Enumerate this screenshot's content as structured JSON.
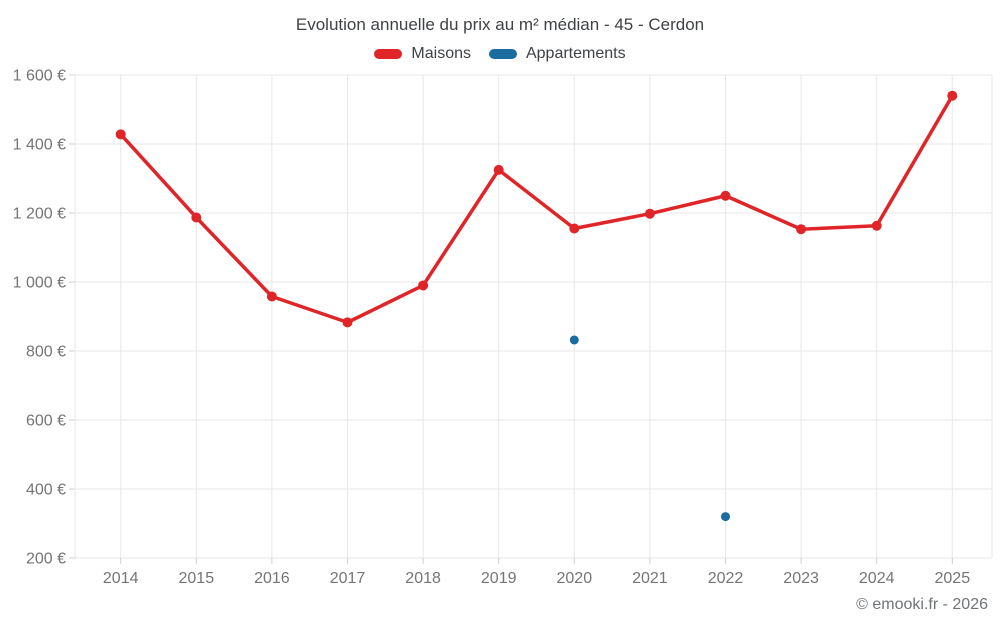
{
  "chart_data": {
    "type": "line",
    "title": "Evolution annuelle du prix au m² médian - 45 - Cerdon",
    "categories": [
      "2014",
      "2015",
      "2016",
      "2017",
      "2018",
      "2019",
      "2020",
      "2021",
      "2022",
      "2023",
      "2024",
      "2025"
    ],
    "series": [
      {
        "name": "Maisons",
        "color": "#e02529",
        "values": [
          1428,
          1187,
          958,
          883,
          990,
          1325,
          1155,
          1198,
          1250,
          1153,
          1163,
          1540
        ]
      },
      {
        "name": "Appartements",
        "color": "#1a6d9e",
        "values": [
          null,
          null,
          null,
          null,
          null,
          null,
          832,
          null,
          320,
          null,
          null,
          null
        ]
      }
    ],
    "ylim": [
      200,
      1600
    ],
    "ytick_step": 200,
    "ytick_labels": [
      "200 €",
      "400 €",
      "600 €",
      "800 €",
      "1 000 €",
      "1 200 €",
      "1 400 €",
      "1 600 €"
    ],
    "grid": true,
    "legend_position": "top"
  },
  "footer": {
    "copyright": "© emooki.fr - 2026"
  }
}
